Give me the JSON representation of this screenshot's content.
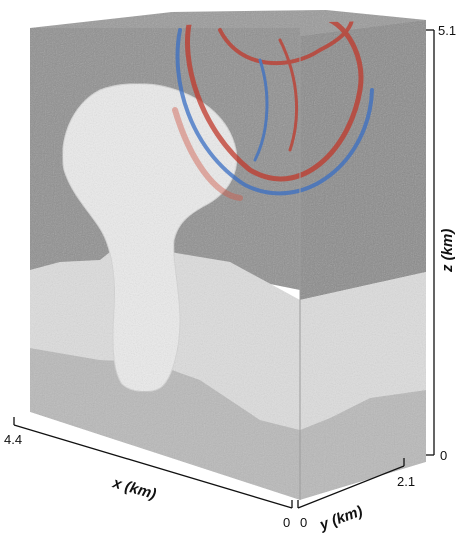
{
  "axes": {
    "x": {
      "label": "x (km)",
      "tick_start": "4.4",
      "tick_end": "0"
    },
    "y": {
      "label": "y (km)",
      "tick_start": "0",
      "tick_end": "2.1"
    },
    "z": {
      "label": "z (km)",
      "tick_bottom": "0",
      "tick_top": "5.1"
    }
  },
  "colors": {
    "sediment_dark": "#8f8f8f",
    "sediment_light": "#dedede",
    "salt_body": "#ececec",
    "basement": "#b9b9b9",
    "wavefront_red": "#c0392b",
    "wavefront_blue": "#3a6fc4"
  }
}
